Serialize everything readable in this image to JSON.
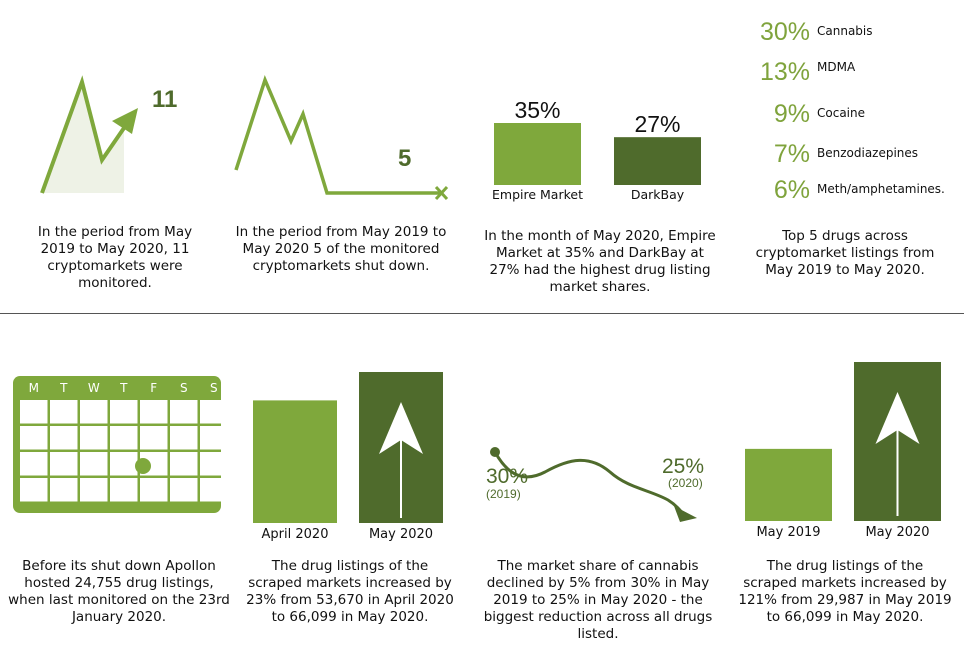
{
  "colors": {
    "light_green": "#7fa83c",
    "dark_green": "#4f6b2c",
    "text": "#111111"
  },
  "panel1": {
    "number": "11",
    "caption": "In the period from May 2019 to May 2020, 11 cryptomarkets were monitored."
  },
  "panel2": {
    "number": "5",
    "caption": "In the period from May 2019 to May 2020 5 of the monitored cryptomarkets shut down."
  },
  "panel3": {
    "caption": "In the month of May 2020, Empire Market at 35% and DarkBay at 27% had the highest drug listing market shares."
  },
  "panel4": {
    "caption": "Top 5 drugs across cryptomarket listings from May 2019 to May 2020."
  },
  "panel5": {
    "days": [
      "M",
      "T",
      "W",
      "T",
      "F",
      "S",
      "S"
    ],
    "caption": "Before its shut down Apollon hosted 24,755 drug listings, when last monitored on the 23rd January 2020."
  },
  "panel6": {
    "caption": "The drug listings of the scraped markets increased by 23% from 53,670 in April 2020 to 66,099 in May 2020."
  },
  "panel7": {
    "start_label": "30%",
    "start_year": "(2019)",
    "end_label": "25%",
    "end_year": "(2020)",
    "caption": "The market share of cannabis declined by 5% from 30% in May 2019 to 25% in May 2020 - the biggest reduction across all drugs listed."
  },
  "panel8": {
    "caption": "The drug listings of the scraped markets increased by 121% from 29,987 in May 2019 to 66,099 in May 2020."
  },
  "chart_data": [
    {
      "type": "bar",
      "categories": [
        "Empire Market",
        "DarkBay"
      ],
      "values": [
        35,
        27
      ],
      "value_labels": [
        "35%",
        "27%"
      ],
      "ylim": [
        0,
        35
      ]
    },
    {
      "type": "table",
      "rows": [
        {
          "label": "Cannabis",
          "value": 30,
          "display": "30%"
        },
        {
          "label": "MDMA",
          "value": 13,
          "display": "13%"
        },
        {
          "label": "Cocaine",
          "value": 9,
          "display": "9%"
        },
        {
          "label": "Benzodiazepines",
          "value": 7,
          "display": "7%"
        },
        {
          "label": "Meth/amphetamines.",
          "value": 6,
          "display": "6%"
        }
      ]
    },
    {
      "type": "bar",
      "categories": [
        "April 2020",
        "May 2020"
      ],
      "values": [
        53670,
        66099
      ],
      "ylim": [
        0,
        66099
      ]
    },
    {
      "type": "line",
      "x": [
        "2019",
        "2020"
      ],
      "values": [
        30,
        25
      ]
    },
    {
      "type": "bar",
      "categories": [
        "May 2019",
        "May 2020"
      ],
      "values": [
        29987,
        66099
      ],
      "ylim": [
        0,
        66099
      ]
    }
  ]
}
